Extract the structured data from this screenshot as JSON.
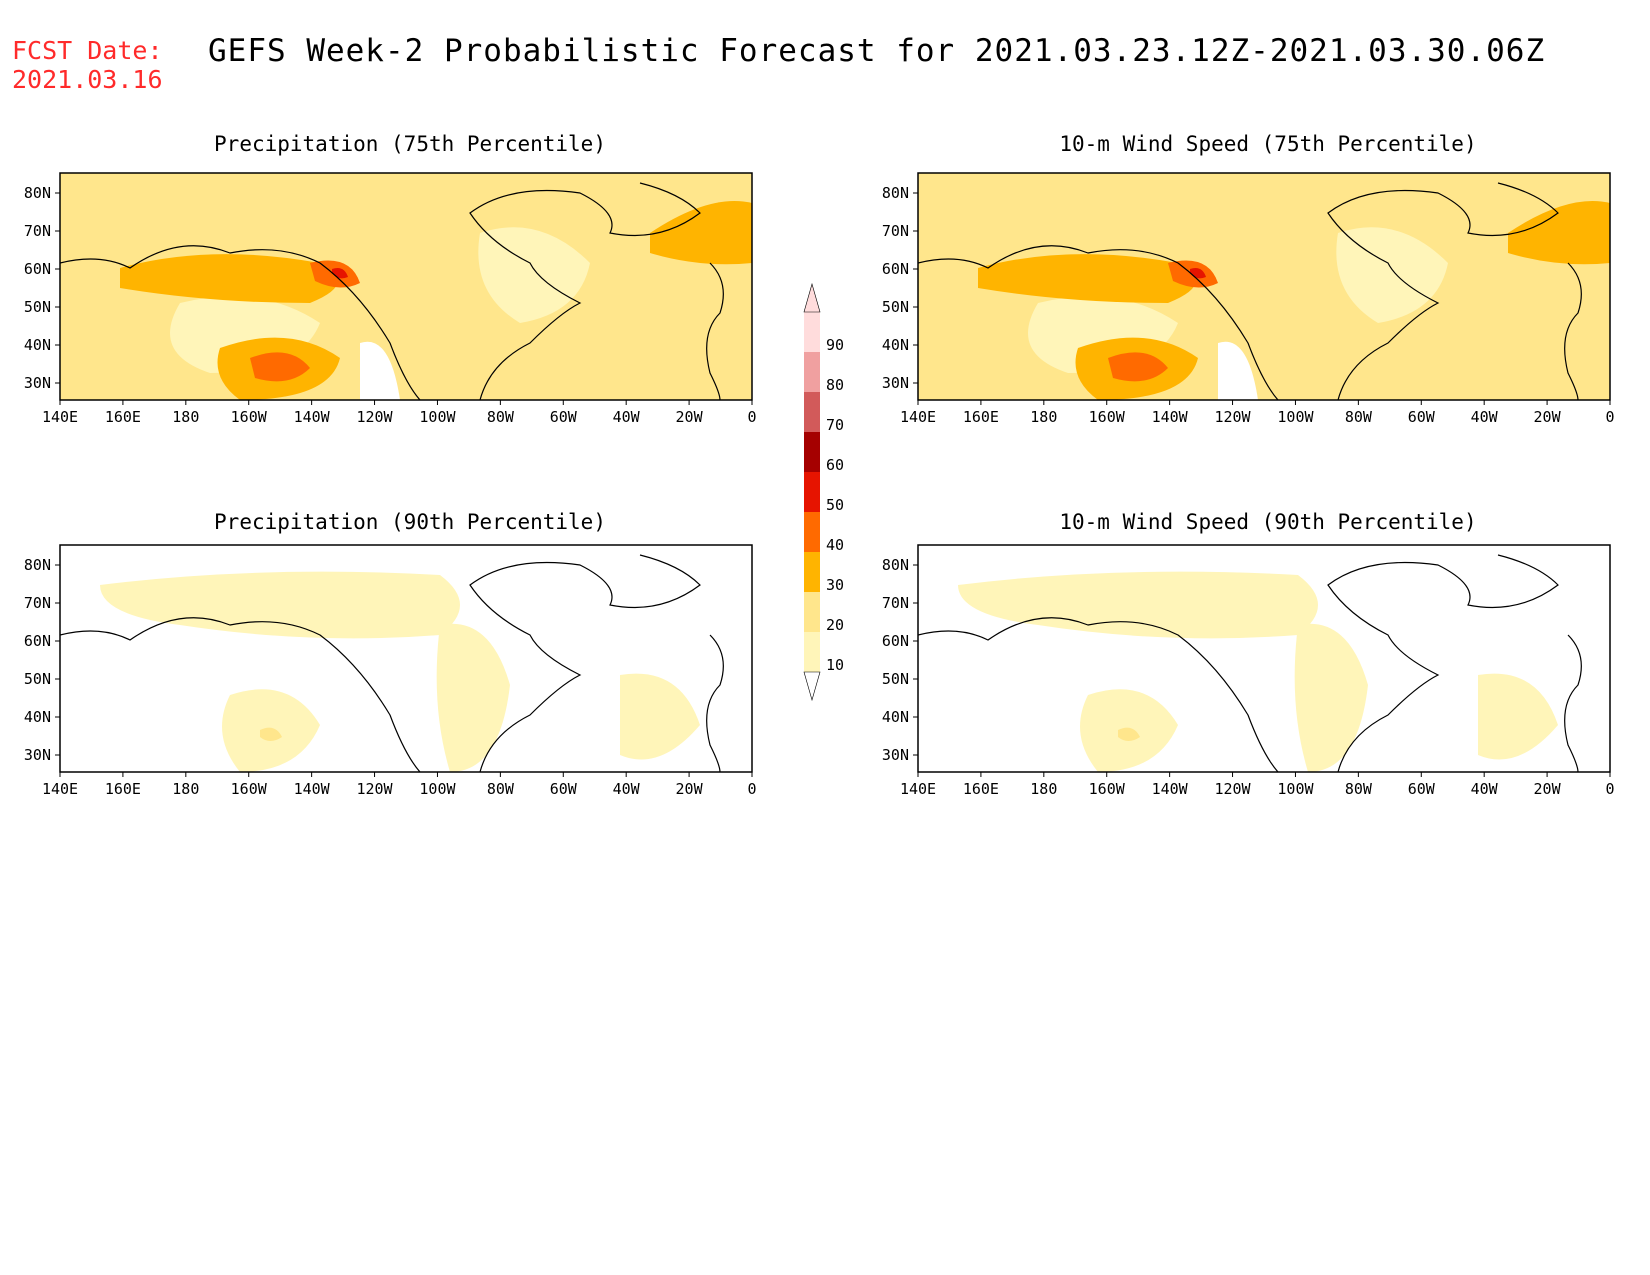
{
  "header": {
    "fcst_label": "FCST Date:",
    "fcst_date": "2021.03.16",
    "title": "GEFS Week-2 Probabilistic Forecast for 2021.03.23.12Z-2021.03.30.06Z"
  },
  "axes": {
    "lon_ticks": [
      "140E",
      "160E",
      "180",
      "160W",
      "140W",
      "120W",
      "100W",
      "80W",
      "60W",
      "40W",
      "20W",
      "0"
    ],
    "lat_ticks": [
      "80N",
      "70N",
      "60N",
      "50N",
      "40N",
      "30N"
    ]
  },
  "panels": [
    {
      "title": "Precipitation (75th Percentile)",
      "level": "high"
    },
    {
      "title": "10-m Wind Speed (75th Percentile)",
      "level": "high"
    },
    {
      "title": "Precipitation (90th Percentile)",
      "level": "low"
    },
    {
      "title": "10-m Wind Speed (90th Percentile)",
      "level": "low"
    }
  ],
  "colorbar": {
    "levels": [
      "10",
      "20",
      "30",
      "40",
      "50",
      "60",
      "70",
      "80",
      "90"
    ],
    "colors": [
      "#fff5b9",
      "#ffe68c",
      "#ffb400",
      "#ff6a00",
      "#e61400",
      "#a50000",
      "#d25a5a",
      "#f0a0a0",
      "#ffdcdc"
    ]
  },
  "colors": {
    "yellow": "#fff0a5",
    "orange": "#ffb400",
    "deep_orange": "#ff6a00",
    "red": "#e61400",
    "dark_red": "#a50000"
  }
}
